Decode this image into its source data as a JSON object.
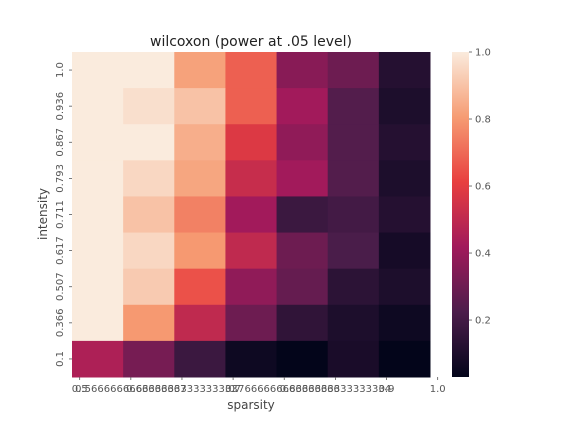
{
  "chart_data": {
    "type": "heatmap",
    "title": "wilcoxon (power at .05 level)",
    "xlabel": "sparsity",
    "ylabel": "intensity",
    "x_tick_labels": [
      "0.5",
      "0.5666666666666667",
      "0.6333333333333333",
      "0.7",
      "0.7666666666666666",
      "0.8333333333333334",
      "0.9",
      "1.0"
    ],
    "y_tick_labels": [
      "1.0",
      "0.936",
      "0.867",
      "0.793",
      "0.711",
      "0.617",
      "0.507",
      "0.366",
      "0.1"
    ],
    "values": [
      [
        1.0,
        1.0,
        0.82,
        0.68,
        0.36,
        0.3,
        0.12
      ],
      [
        1.0,
        0.97,
        0.9,
        0.68,
        0.42,
        0.24,
        0.1
      ],
      [
        1.0,
        1.0,
        0.85,
        0.58,
        0.38,
        0.24,
        0.12
      ],
      [
        1.0,
        0.95,
        0.83,
        0.52,
        0.42,
        0.24,
        0.1
      ],
      [
        1.0,
        0.9,
        0.75,
        0.42,
        0.18,
        0.2,
        0.12
      ],
      [
        1.0,
        0.95,
        0.8,
        0.5,
        0.3,
        0.22,
        0.08
      ],
      [
        1.0,
        0.92,
        0.65,
        0.38,
        0.28,
        0.14,
        0.1
      ],
      [
        1.0,
        0.8,
        0.5,
        0.3,
        0.15,
        0.1,
        0.06
      ],
      [
        0.45,
        0.32,
        0.18,
        0.06,
        0.03,
        0.09,
        0.02
      ]
    ],
    "colorbar": {
      "range": [
        0.03,
        1.0
      ],
      "ticks": [
        0.2,
        0.4,
        0.6,
        0.8,
        1.0
      ],
      "tick_labels": [
        "0.2",
        "0.4",
        "0.6",
        "0.8",
        "1.0"
      ]
    },
    "colormap": "rocket",
    "colormap_stops": [
      "#03051a",
      "#4c1d4b",
      "#a11a5b",
      "#e83f3f",
      "#f69c73",
      "#faebdd"
    ]
  }
}
